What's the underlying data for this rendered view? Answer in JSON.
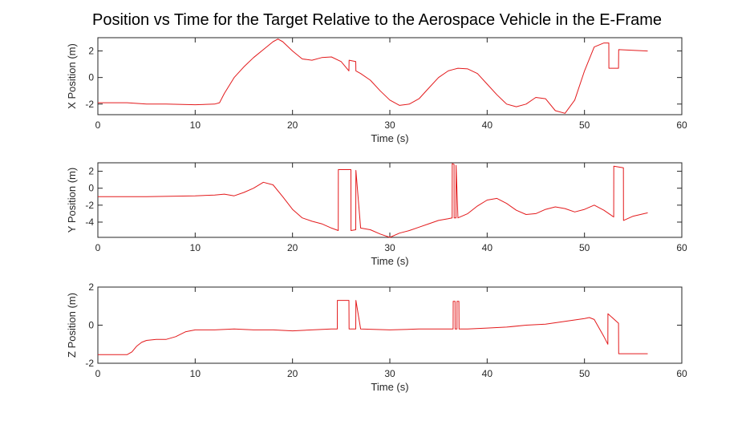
{
  "title": "Position vs Time for the Target Relative to the Aerospace Vehicle in the E-Frame",
  "colors": {
    "line": "#e31a1c",
    "axis": "#262626",
    "background": "#ffffff"
  },
  "chart_data": [
    {
      "type": "line",
      "xlabel": "Time (s)",
      "ylabel": "X Position (m)",
      "xlim": [
        0,
        60
      ],
      "ylim": [
        -2.8,
        3
      ],
      "xticks": [
        0,
        10,
        20,
        30,
        40,
        50,
        60
      ],
      "yticks": [
        -2,
        0,
        2
      ],
      "grid": false,
      "series": [
        {
          "x": [
            0,
            3,
            5,
            7,
            10,
            12,
            12.5,
            13,
            14,
            15,
            16,
            17,
            18,
            18.5,
            19,
            20,
            21,
            22,
            23,
            24,
            25,
            25.8,
            25.81,
            26.5,
            26.51,
            27,
            28,
            29,
            30,
            31,
            32,
            33,
            34,
            35,
            36,
            36.5,
            37,
            38,
            39,
            40,
            41,
            42,
            43,
            44,
            45,
            46,
            47,
            48,
            49,
            50,
            51,
            52,
            52.5,
            52.51,
            53.5,
            53.51,
            56.5
          ],
          "y": [
            -1.9,
            -1.9,
            -2.0,
            -2.0,
            -2.05,
            -2.0,
            -1.9,
            -1.2,
            0.0,
            0.8,
            1.5,
            2.1,
            2.7,
            2.9,
            2.7,
            2.0,
            1.4,
            1.3,
            1.5,
            1.55,
            1.2,
            0.5,
            1.3,
            1.2,
            0.5,
            0.3,
            -0.2,
            -1.0,
            -1.7,
            -2.1,
            -2.0,
            -1.6,
            -0.8,
            0.0,
            0.5,
            0.6,
            0.7,
            0.65,
            0.3,
            -0.5,
            -1.3,
            -2.0,
            -2.2,
            -2.0,
            -1.5,
            -1.6,
            -2.5,
            -2.7,
            -1.7,
            0.5,
            2.3,
            2.6,
            2.6,
            0.7,
            0.7,
            2.1,
            2.0
          ]
        }
      ]
    },
    {
      "type": "line",
      "xlabel": "Time (s)",
      "ylabel": "Y Position (m)",
      "xlim": [
        0,
        60
      ],
      "ylim": [
        -5.8,
        3
      ],
      "xticks": [
        0,
        10,
        20,
        30,
        40,
        50,
        60
      ],
      "yticks": [
        -4,
        -2,
        0,
        2
      ],
      "grid": false,
      "series": [
        {
          "x": [
            0,
            5,
            10,
            12,
            13,
            14,
            15,
            16,
            17,
            18,
            19,
            20,
            21,
            22,
            23,
            24,
            24.7,
            24.71,
            26,
            26.01,
            26.5,
            26.51,
            27,
            28,
            29,
            30,
            31,
            32,
            33,
            34,
            35,
            36,
            36.4,
            36.41,
            36.6,
            36.61,
            36.8,
            36.81,
            37,
            38,
            39,
            40,
            41,
            42,
            43,
            44,
            45,
            46,
            47,
            48,
            49,
            50,
            51,
            52,
            53,
            53.01,
            54,
            54.01,
            55,
            56.5
          ],
          "y": [
            -1.0,
            -1.0,
            -0.9,
            -0.8,
            -0.7,
            -0.9,
            -0.5,
            0.0,
            0.7,
            0.4,
            -1.0,
            -2.5,
            -3.5,
            -3.9,
            -4.2,
            -4.7,
            -5.0,
            2.2,
            2.2,
            -5.0,
            -4.9,
            2.1,
            -4.7,
            -4.9,
            -5.4,
            -5.8,
            -5.3,
            -5.0,
            -4.6,
            -4.2,
            -3.8,
            -3.6,
            -3.5,
            2.9,
            2.8,
            -3.5,
            -3.5,
            2.7,
            -3.5,
            -3.0,
            -2.1,
            -1.4,
            -1.2,
            -1.8,
            -2.6,
            -3.1,
            -3.0,
            -2.5,
            -2.2,
            -2.4,
            -2.8,
            -2.5,
            -2.0,
            -2.6,
            -3.4,
            2.6,
            2.4,
            -3.8,
            -3.3,
            -2.9
          ]
        }
      ]
    },
    {
      "type": "line",
      "xlabel": "Time (s)",
      "ylabel": "Z Position (m)",
      "xlim": [
        0,
        60
      ],
      "ylim": [
        -2,
        2
      ],
      "xticks": [
        0,
        10,
        20,
        30,
        40,
        50,
        60
      ],
      "yticks": [
        -2,
        0,
        2
      ],
      "grid": false,
      "series": [
        {
          "x": [
            0,
            3,
            3.5,
            4,
            4.5,
            5,
            6,
            7,
            8,
            9,
            10,
            12,
            14,
            16,
            18,
            20,
            22,
            24,
            24.6,
            24.61,
            25.8,
            25.81,
            26.5,
            26.51,
            27,
            30,
            33,
            36,
            36.5,
            36.51,
            36.7,
            36.71,
            36.9,
            36.91,
            37.1,
            37.11,
            38,
            40,
            42,
            44,
            46,
            48,
            50,
            50.5,
            51,
            52,
            52.4,
            52.41,
            53.5,
            53.51,
            56.5
          ],
          "y": [
            -1.55,
            -1.55,
            -1.4,
            -1.1,
            -0.9,
            -0.8,
            -0.75,
            -0.75,
            -0.6,
            -0.35,
            -0.25,
            -0.25,
            -0.2,
            -0.25,
            -0.25,
            -0.3,
            -0.25,
            -0.2,
            -0.2,
            1.3,
            1.3,
            -0.2,
            -0.2,
            1.3,
            -0.2,
            -0.25,
            -0.2,
            -0.2,
            -0.2,
            1.25,
            1.25,
            -0.2,
            -0.2,
            1.25,
            1.25,
            -0.2,
            -0.2,
            -0.15,
            -0.1,
            0.0,
            0.05,
            0.2,
            0.35,
            0.4,
            0.3,
            -0.6,
            -1.0,
            0.6,
            0.1,
            -1.5,
            -1.5
          ]
        }
      ]
    }
  ]
}
